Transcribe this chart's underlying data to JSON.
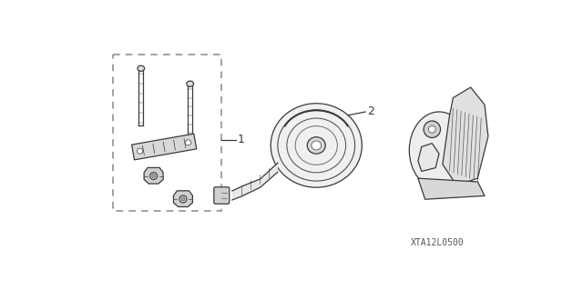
{
  "background_color": "#ffffff",
  "part_code": "XTA12L0500",
  "label1": "1",
  "label2": "2",
  "fig_width": 6.4,
  "fig_height": 3.19,
  "dpi": 100,
  "line_color": "#3a3a3a",
  "light_gray": "#c8c8c8",
  "mid_gray": "#aaaaaa",
  "part_code_color": "#555555",
  "part_code_fontsize": 7,
  "label_fontsize": 9,
  "box_lc": "#888888",
  "lw_main": 0.9,
  "lw_thin": 0.5
}
